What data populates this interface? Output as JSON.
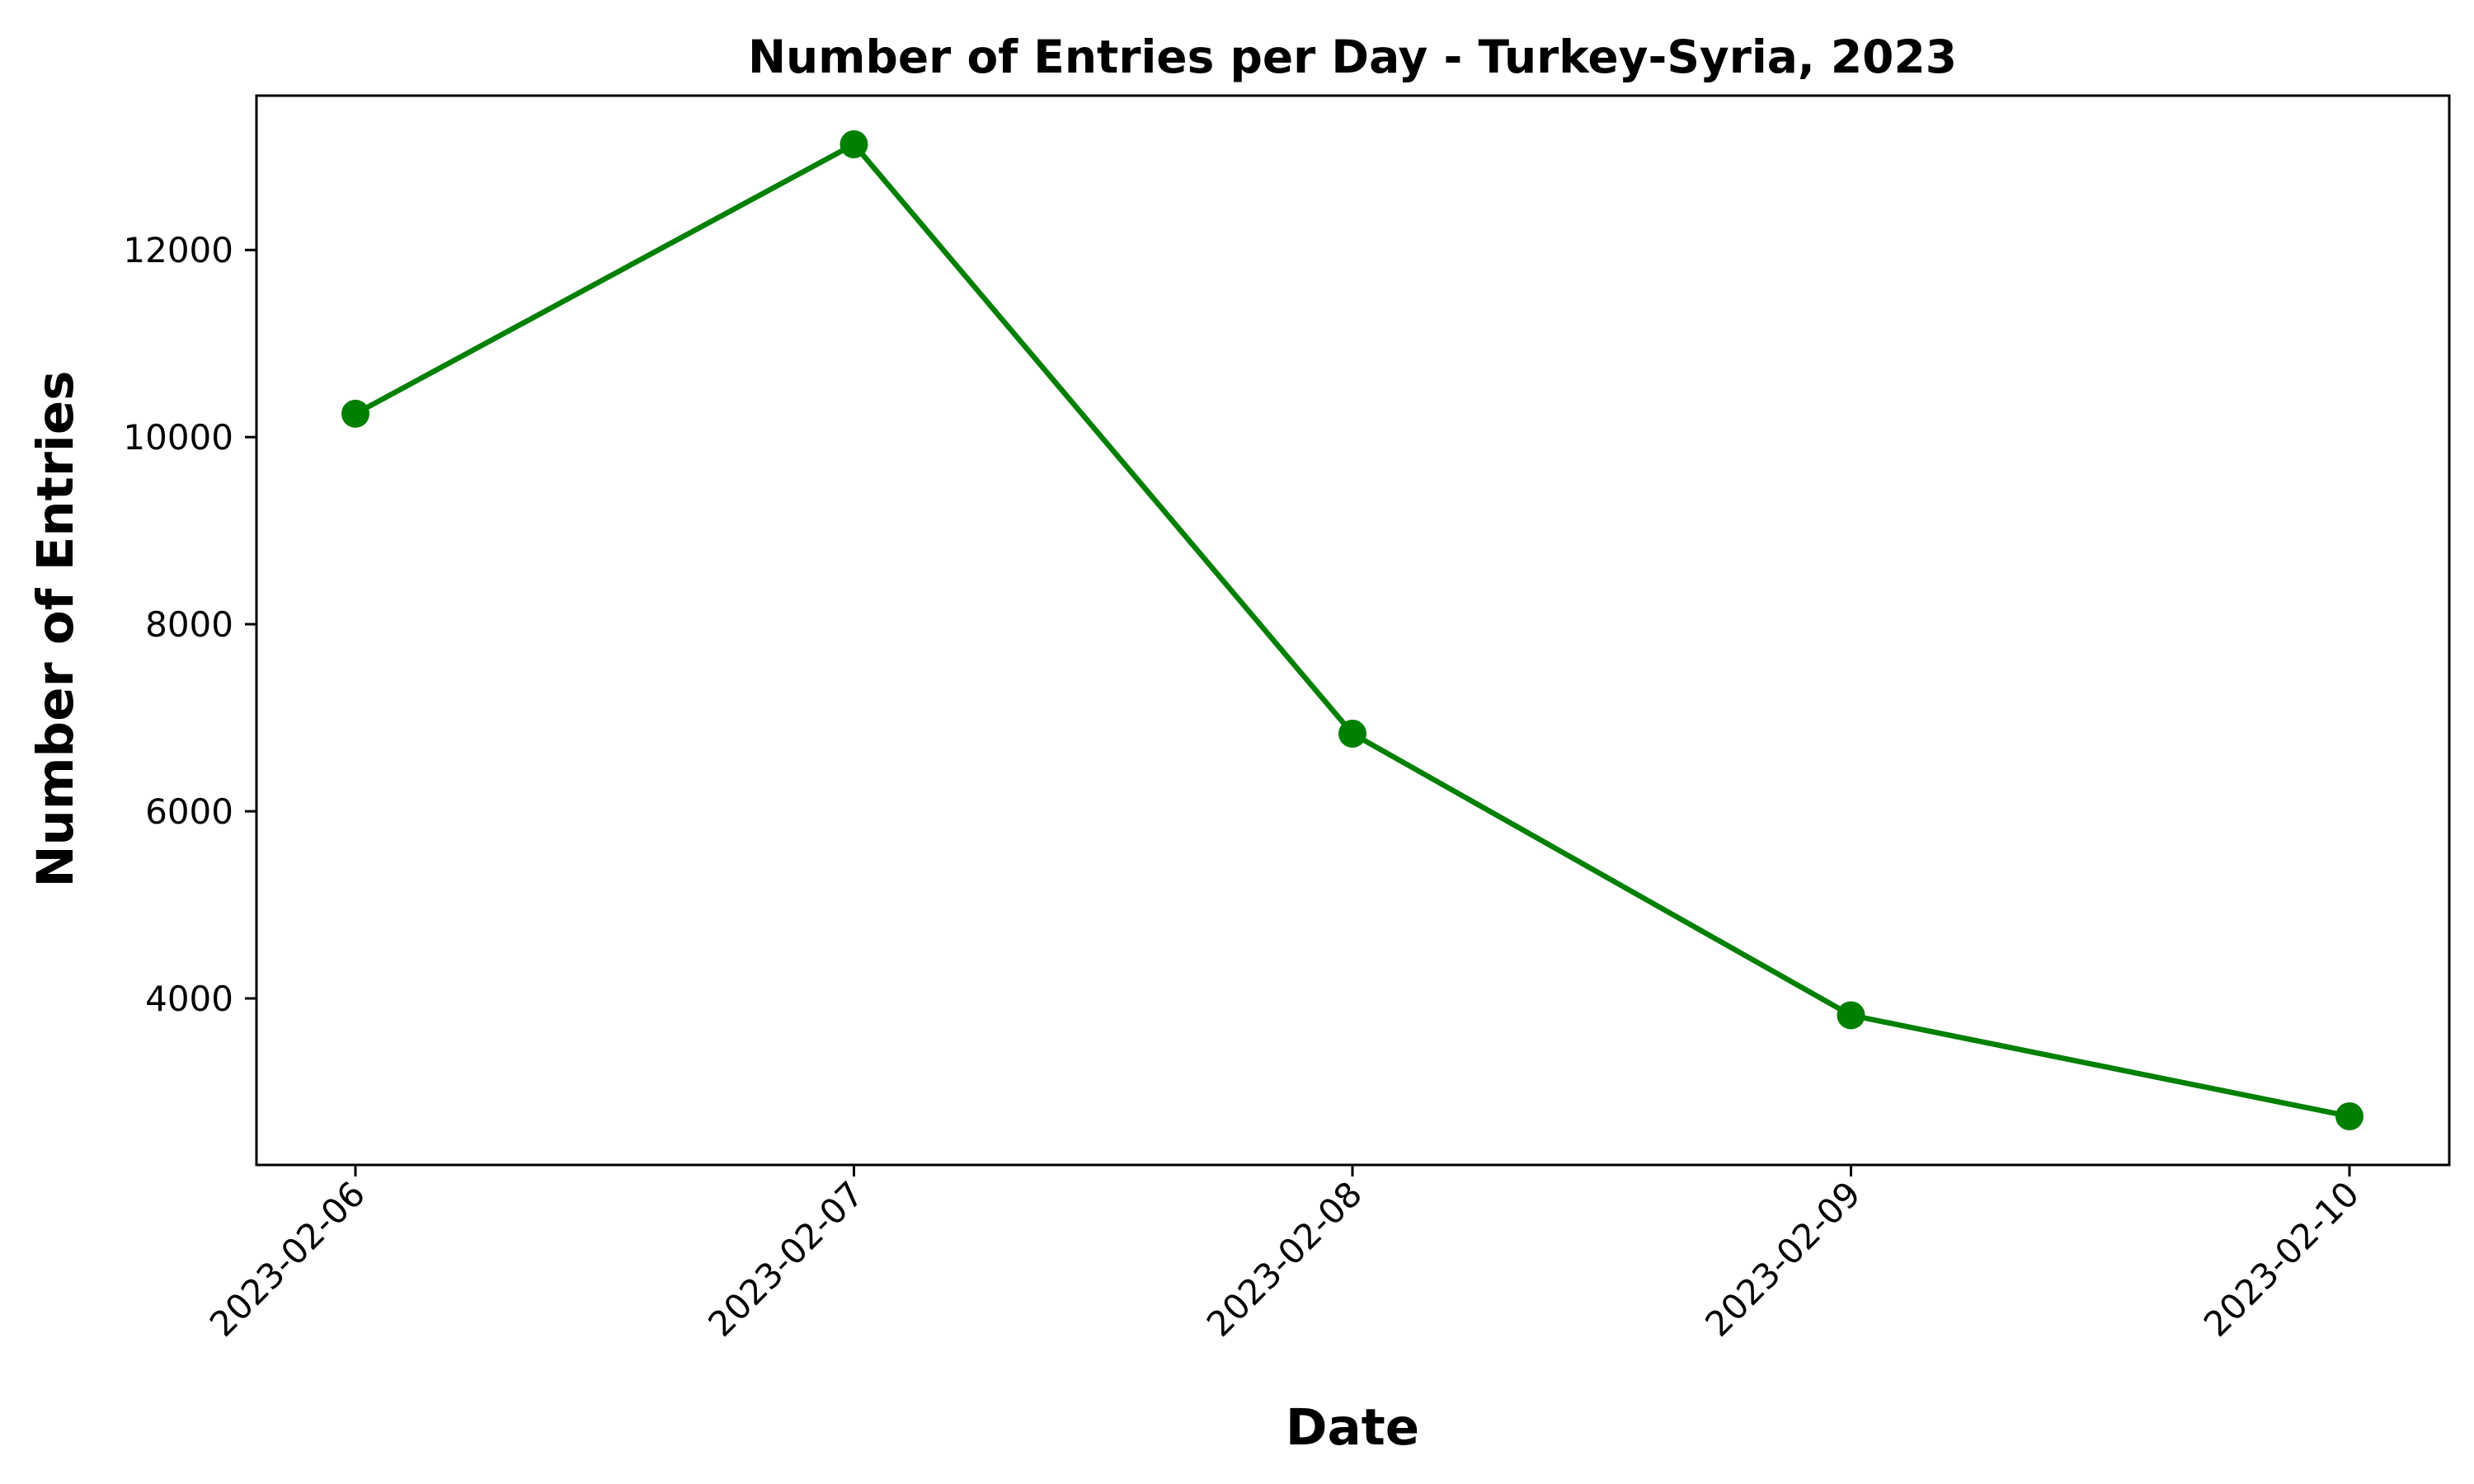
{
  "chart_data": {
    "type": "line",
    "title": "Number of Entries per Day - Turkey-Syria, 2023",
    "xlabel": "Date",
    "ylabel": "Number of Entries",
    "categories": [
      "2023-02-06",
      "2023-02-07",
      "2023-02-08",
      "2023-02-09",
      "2023-02-10"
    ],
    "series": [
      {
        "values": [
          10250,
          13130,
          6830,
          3820,
          2740
        ],
        "color": "#008000",
        "marker": "circle"
      }
    ],
    "yticks": [
      4000,
      6000,
      8000,
      10000,
      12000
    ],
    "ylim": [
      2220,
      13650
    ],
    "grid": false,
    "legend": "none"
  }
}
